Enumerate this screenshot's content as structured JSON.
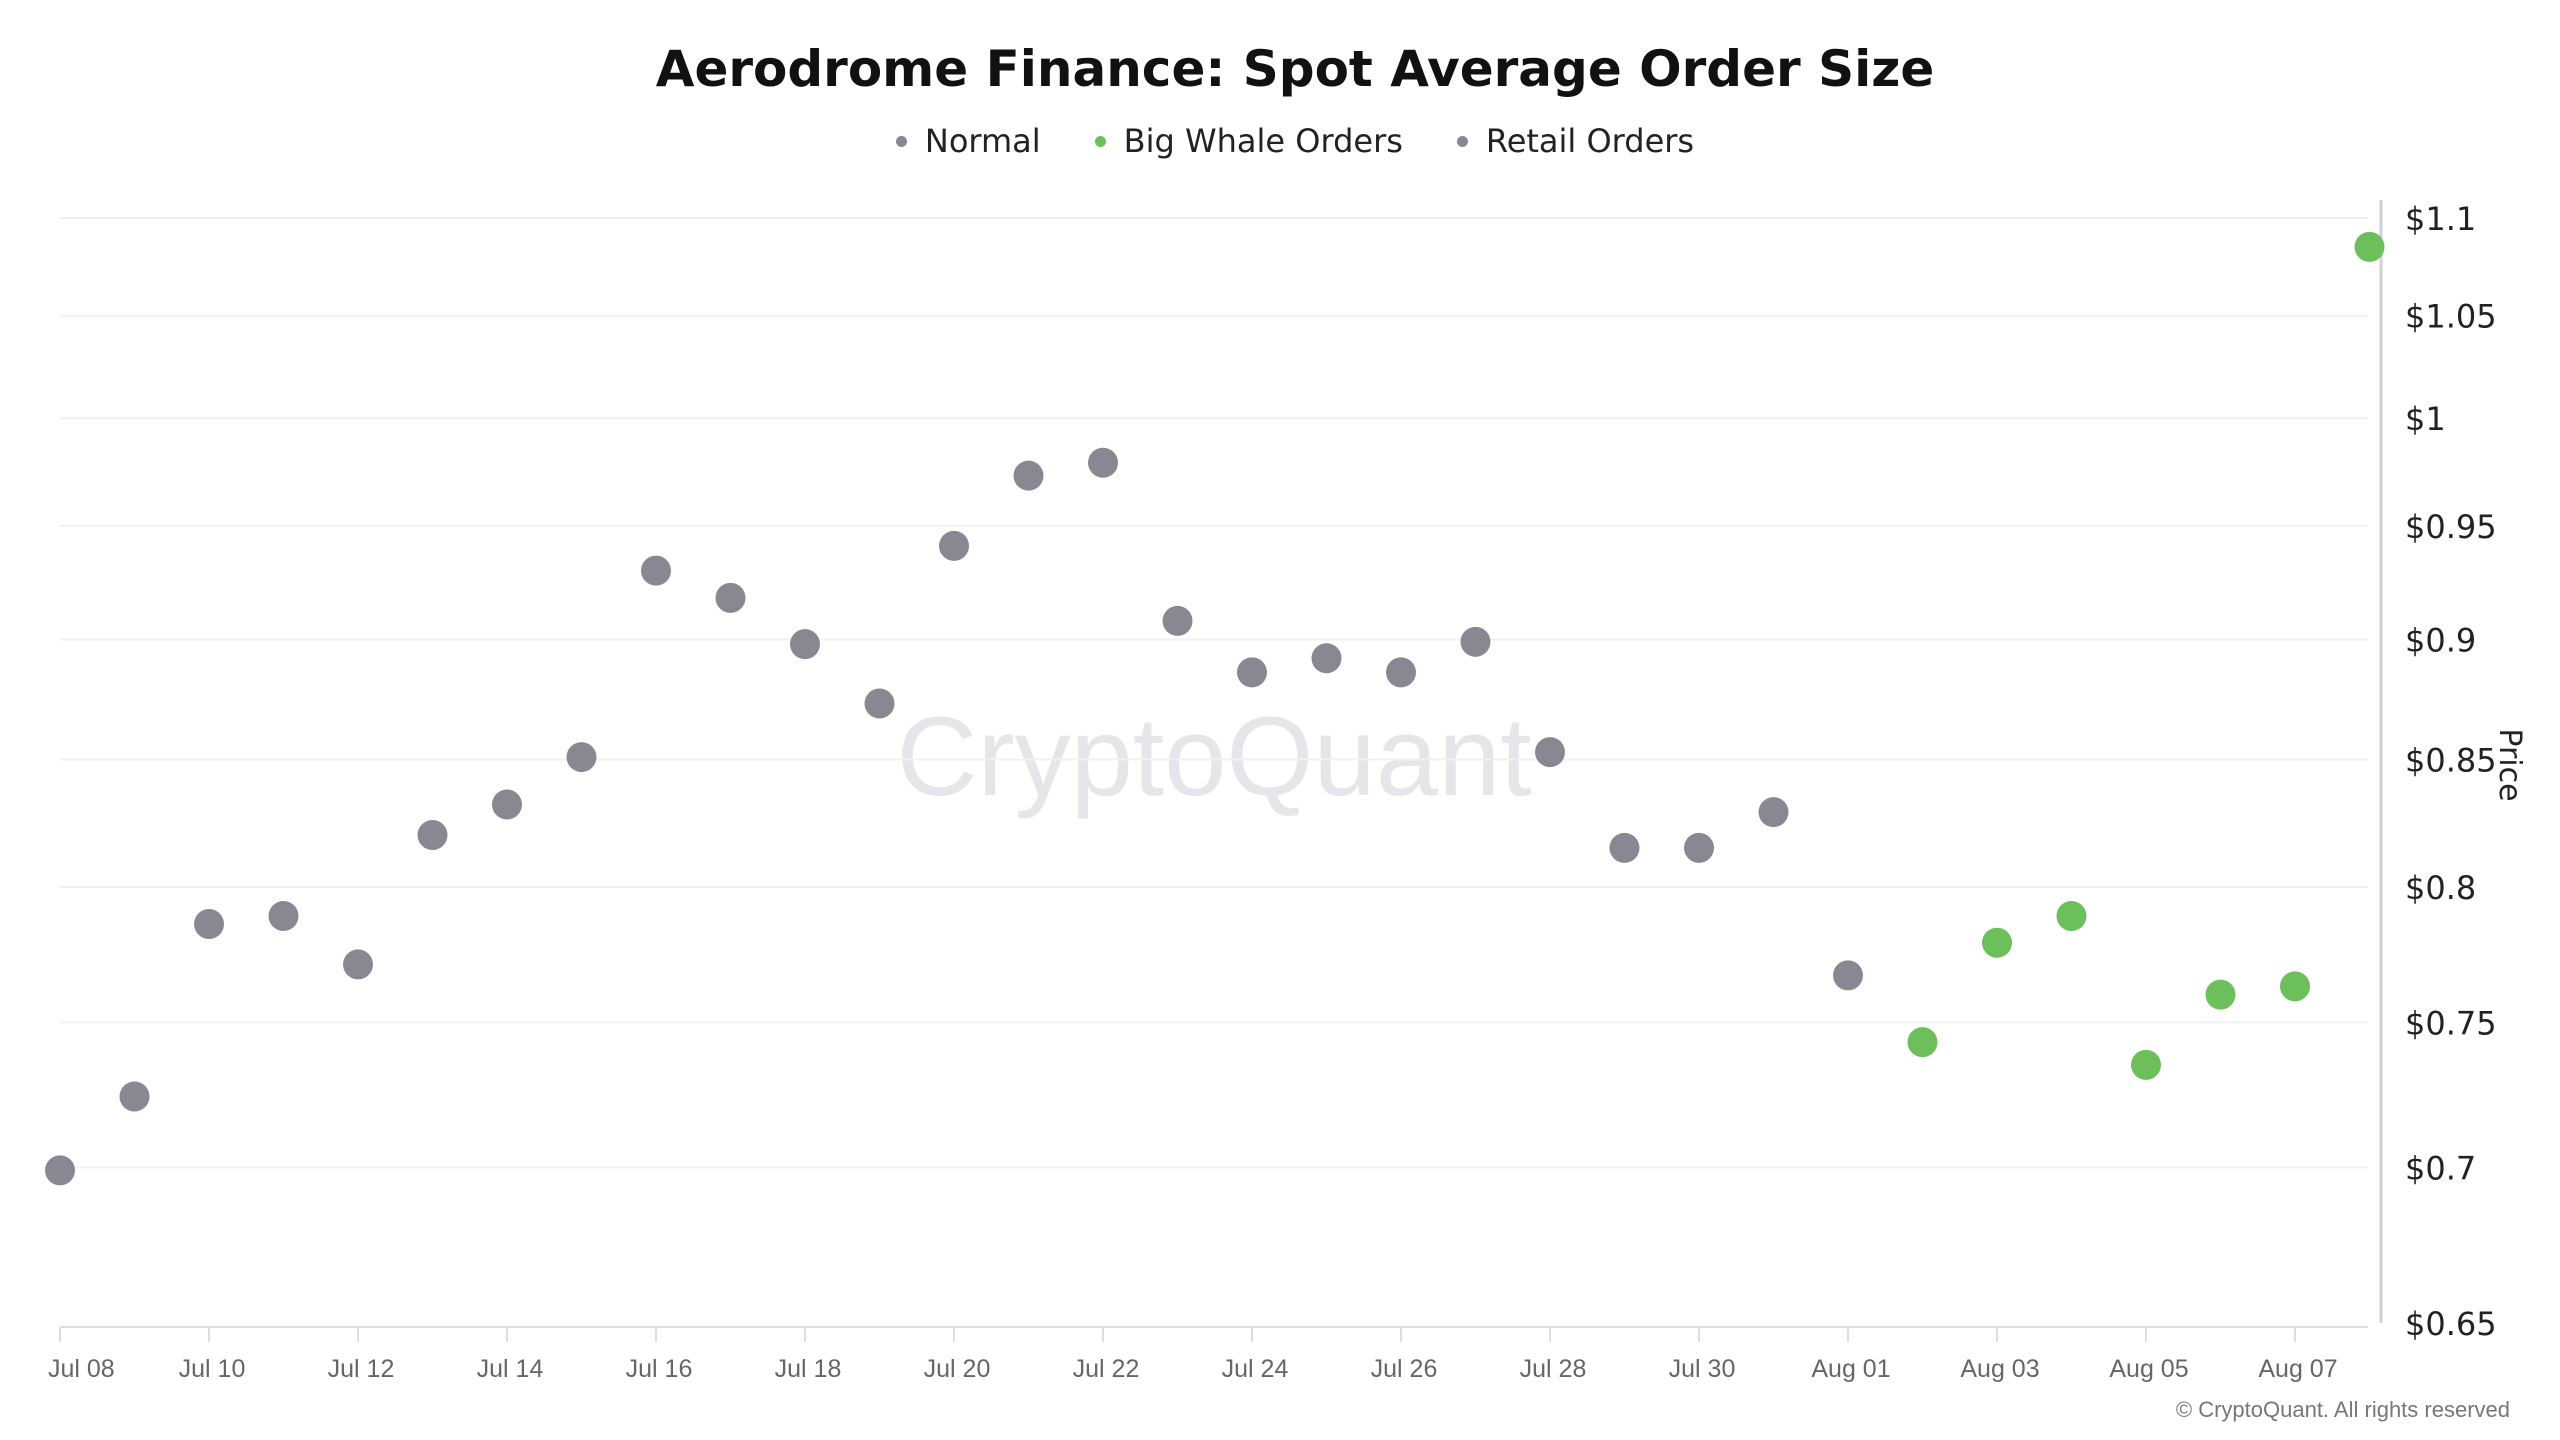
{
  "chart_data": {
    "type": "scatter",
    "title": "Aerodrome Finance: Spot Average Order Size",
    "ylabel": "Price",
    "xlabel": "",
    "yscale": "log",
    "ylim": [
      0.65,
      1.1
    ],
    "yticks": [
      0.65,
      0.7,
      0.75,
      0.8,
      0.85,
      0.9,
      0.95,
      1,
      1.05,
      1.1
    ],
    "ytick_labels": [
      "$0.65",
      "$0.7",
      "$0.75",
      "$0.8",
      "$0.85",
      "$0.9",
      "$0.95",
      "$1",
      "$1.05",
      "$1.1"
    ],
    "xtick_labels": [
      "Jul 08",
      "Jul 10",
      "Jul 12",
      "Jul 14",
      "Jul 16",
      "Jul 18",
      "Jul 20",
      "Jul 22",
      "Jul 24",
      "Jul 26",
      "Jul 28",
      "Jul 30",
      "Aug 01",
      "Aug 03",
      "Aug 05",
      "Aug 07"
    ],
    "legend": [
      {
        "name": "Normal",
        "color": "#8a8793"
      },
      {
        "name": "Big Whale Orders",
        "color": "#6cbf5a"
      },
      {
        "name": "Retail Orders",
        "color": "#8a8793"
      }
    ],
    "legend_placement": "top-center",
    "grid": true,
    "watermark": "CryptoQuant",
    "points": [
      {
        "date": "Jul 08",
        "price": 0.699,
        "cls": "Normal"
      },
      {
        "date": "Jul 09",
        "price": 0.724,
        "cls": "Normal"
      },
      {
        "date": "Jul 10",
        "price": 0.786,
        "cls": "Normal"
      },
      {
        "date": "Jul 11",
        "price": 0.789,
        "cls": "Normal"
      },
      {
        "date": "Jul 12",
        "price": 0.771,
        "cls": "Normal"
      },
      {
        "date": "Jul 13",
        "price": 0.82,
        "cls": "Normal"
      },
      {
        "date": "Jul 14",
        "price": 0.832,
        "cls": "Normal"
      },
      {
        "date": "Jul 15",
        "price": 0.851,
        "cls": "Normal"
      },
      {
        "date": "Jul 16",
        "price": 0.93,
        "cls": "Normal"
      },
      {
        "date": "Jul 17",
        "price": 0.918,
        "cls": "Normal"
      },
      {
        "date": "Jul 18",
        "price": 0.898,
        "cls": "Normal"
      },
      {
        "date": "Jul 19",
        "price": 0.873,
        "cls": "Normal"
      },
      {
        "date": "Jul 20",
        "price": 0.941,
        "cls": "Normal"
      },
      {
        "date": "Jul 21",
        "price": 0.973,
        "cls": "Normal"
      },
      {
        "date": "Jul 22",
        "price": 0.979,
        "cls": "Normal"
      },
      {
        "date": "Jul 23",
        "price": 0.908,
        "cls": "Normal"
      },
      {
        "date": "Jul 24",
        "price": 0.886,
        "cls": "Normal"
      },
      {
        "date": "Jul 25",
        "price": 0.892,
        "cls": "Normal"
      },
      {
        "date": "Jul 26",
        "price": 0.886,
        "cls": "Normal"
      },
      {
        "date": "Jul 27",
        "price": 0.899,
        "cls": "Normal"
      },
      {
        "date": "Jul 28",
        "price": 0.853,
        "cls": "Normal"
      },
      {
        "date": "Jul 29",
        "price": 0.815,
        "cls": "Normal"
      },
      {
        "date": "Jul 30",
        "price": 0.815,
        "cls": "Normal"
      },
      {
        "date": "Jul 31",
        "price": 0.829,
        "cls": "Normal"
      },
      {
        "date": "Aug 01",
        "price": 0.767,
        "cls": "Normal"
      },
      {
        "date": "Aug 02",
        "price": 0.743,
        "cls": "Big Whale Orders"
      },
      {
        "date": "Aug 03",
        "price": 0.779,
        "cls": "Big Whale Orders"
      },
      {
        "date": "Aug 04",
        "price": 0.789,
        "cls": "Big Whale Orders"
      },
      {
        "date": "Aug 05",
        "price": 0.735,
        "cls": "Big Whale Orders"
      },
      {
        "date": "Aug 06",
        "price": 0.76,
        "cls": "Big Whale Orders"
      },
      {
        "date": "Aug 07",
        "price": 0.763,
        "cls": "Big Whale Orders"
      },
      {
        "date": "Aug 08",
        "price": 1.085,
        "cls": "Big Whale Orders"
      }
    ]
  },
  "footer": {
    "copyright": "© CryptoQuant. All rights reserved"
  }
}
